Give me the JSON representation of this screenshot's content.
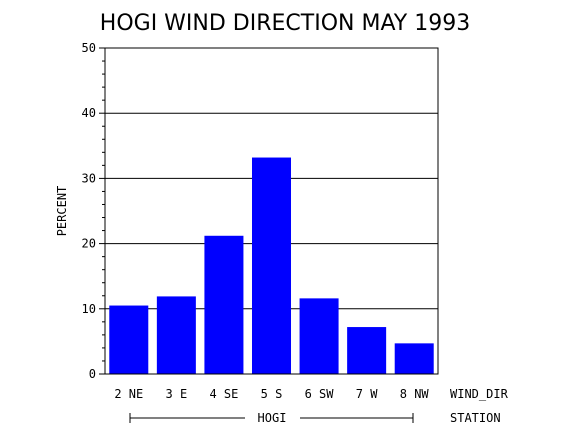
{
  "chart_data": {
    "type": "bar",
    "title": "HOGI WIND DIRECTION MAY 1993",
    "ylabel": "PERCENT",
    "xlabel": "WIND_DIR",
    "group_axis_label": "STATION",
    "group_label": "HOGI",
    "categories": [
      "2 NE",
      "3 E",
      "4 SE",
      "5 S",
      "6 SW",
      "7 W",
      "8 NW"
    ],
    "values": [
      10.5,
      11.9,
      21.2,
      33.2,
      11.6,
      7.2,
      4.7
    ],
    "ylim": [
      0,
      50
    ],
    "yticks": [
      "0",
      "10",
      "20",
      "30",
      "40",
      "50"
    ],
    "grid": true,
    "bar_color": "#0000ff"
  }
}
